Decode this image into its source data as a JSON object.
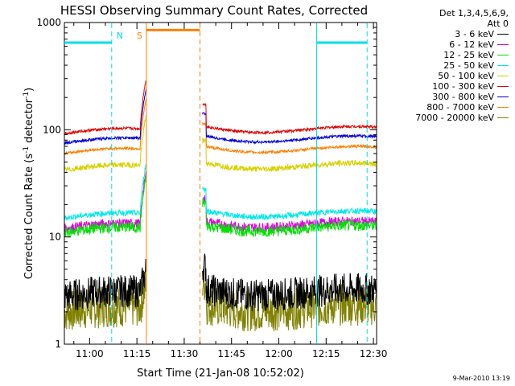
{
  "chart_data": {
    "type": "line",
    "title": "HESSI Observing Summary Count Rates, Corrected",
    "xlabel": "Start Time (21-Jan-08 10:52:02)",
    "ylabel_main": "Corrected Count Rate (s",
    "ylabel_sup1": "-1",
    "ylabel_mid": " detector",
    "ylabel_sup2": "-1",
    "ylabel_end": ")",
    "y_scale": "log",
    "ylim": [
      1,
      1000
    ],
    "xlim": [
      "10:52",
      "12:31"
    ],
    "x_ticks": [
      "11:00",
      "11:15",
      "11:30",
      "11:45",
      "12:00",
      "12:15",
      "12:30"
    ],
    "y_ticks": [
      "1",
      "10",
      "100",
      "1000"
    ],
    "legend_header": [
      "Det 1,3,4,5,6,9,",
      "Att 0"
    ],
    "gap": [
      "11:18",
      "11:35"
    ],
    "series": [
      {
        "name": "3 - 6 keV",
        "color": "#000000",
        "base": 2.8,
        "spread": 0.35
      },
      {
        "name": "6 - 12 keV",
        "color": "#e000e0",
        "base": 12.0,
        "spread": 0.1
      },
      {
        "name": "12 - 25 keV",
        "color": "#00e000",
        "base": 11.0,
        "spread": 0.12
      },
      {
        "name": "25 - 50 keV",
        "color": "#00e8e8",
        "base": 15.0,
        "spread": 0.06
      },
      {
        "name": "50 - 100 keV",
        "color": "#d8d000",
        "base": 42.0,
        "spread": 0.06
      },
      {
        "name": "100 - 300 keV",
        "color": "#e00000",
        "base": 92.0,
        "spread": 0.03
      },
      {
        "name": "300 - 800 keV",
        "color": "#0000e0",
        "base": 75.0,
        "spread": 0.03
      },
      {
        "name": "800 - 7000 keV",
        "color": "#ff8000",
        "base": 60.0,
        "spread": 0.03
      },
      {
        "name": "7000 - 20000 keV",
        "color": "#808000",
        "base": 2.0,
        "spread": 0.45
      }
    ],
    "markers": [
      {
        "label": "N",
        "time": "11:07",
        "style": "dashed",
        "color": "#00e0e0"
      },
      {
        "label": "S",
        "time": "11:18",
        "style": "solid",
        "color": "#ff8000"
      },
      {
        "label": "",
        "time": "11:35",
        "style": "dashed",
        "color": "#ff8000"
      },
      {
        "label": "",
        "time": "12:12",
        "style": "solid",
        "color": "#00e0e0"
      },
      {
        "label": "",
        "time": "12:28",
        "style": "dashed",
        "color": "#00e0e0"
      }
    ],
    "top_bars": [
      {
        "start": "10:52",
        "end": "11:07",
        "value": 650,
        "color": "#00e0e0"
      },
      {
        "start": "11:18",
        "end": "11:35",
        "value": 850,
        "color": "#ff8000"
      },
      {
        "start": "12:12",
        "end": "12:28",
        "value": 650,
        "color": "#00e0e0"
      }
    ]
  },
  "footer_timestamp": "9-Mar-2010 13:19"
}
